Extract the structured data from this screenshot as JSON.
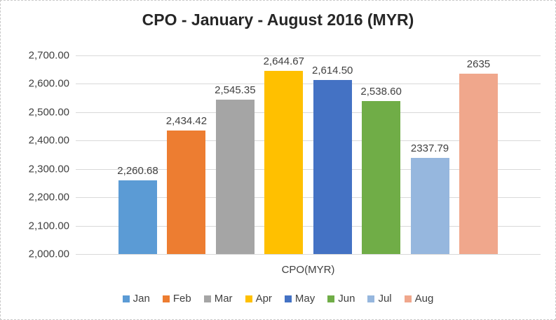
{
  "chart_data": {
    "type": "bar",
    "title": "CPO - January - August 2016 (MYR)",
    "xlabel": "CPO(MYR)",
    "ylabel": "",
    "categories": [
      "Jan",
      "Feb",
      "Mar",
      "Apr",
      "May",
      "Jun",
      "Jul",
      "Aug"
    ],
    "values": [
      2260.68,
      2434.42,
      2545.35,
      2644.67,
      2614.5,
      2538.6,
      2337.79,
      2635
    ],
    "value_labels": [
      "2,260.68",
      "2,434.42",
      "2,545.35",
      "2,644.67",
      "2,614.50",
      "2,538.60",
      "2337.79",
      "2635"
    ],
    "bar_colors": [
      "#5B9BD5",
      "#ED7D31",
      "#A5A5A5",
      "#FFC000",
      "#4472C4",
      "#70AD47",
      "#96B7DE",
      "#F0A78C"
    ],
    "ylim": [
      2000,
      2700
    ],
    "ytick_labels": [
      "2,700.00",
      "2,600.00",
      "2,500.00",
      "2,400.00",
      "2,300.00",
      "2,200.00",
      "2,100.00",
      "2,000.00"
    ],
    "grid": true,
    "legend": {
      "position": "bottom",
      "entries": [
        {
          "label": "Jan",
          "color": "#5B9BD5"
        },
        {
          "label": "Feb",
          "color": "#ED7D31"
        },
        {
          "label": "Mar",
          "color": "#A5A5A5"
        },
        {
          "label": "Apr",
          "color": "#FFC000"
        },
        {
          "label": "May",
          "color": "#4472C4"
        },
        {
          "label": "Jun",
          "color": "#70AD47"
        },
        {
          "label": "Jul",
          "color": "#96B7DE"
        },
        {
          "label": "Aug",
          "color": "#F0A78C"
        }
      ]
    }
  },
  "colors": {
    "grid": "#D9D9D9",
    "axis_text": "#404040",
    "title_text": "#262626",
    "border": "#C9C9C9",
    "background": "#FFFFFF"
  }
}
